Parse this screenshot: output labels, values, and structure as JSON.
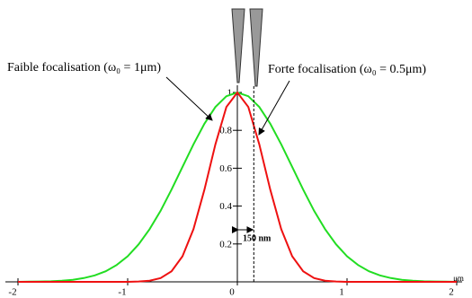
{
  "chart_data": {
    "type": "line",
    "x": [
      -2,
      -1.9,
      -1.8,
      -1.7,
      -1.6,
      -1.5,
      -1.4,
      -1.3,
      -1.2,
      -1.1,
      -1,
      -0.9,
      -0.8,
      -0.7,
      -0.6,
      -0.5,
      -0.4,
      -0.3,
      -0.2,
      -0.1,
      0,
      0.1,
      0.2,
      0.3,
      0.4,
      0.5,
      0.6,
      0.7,
      0.8,
      0.9,
      1,
      1.1,
      1.2,
      1.3,
      1.4,
      1.5,
      1.6,
      1.7,
      1.8,
      1.9,
      2
    ],
    "series": [
      {
        "name": "Faible focalisation (ω₀ = 1μm)",
        "color": "#22dd22",
        "values": [
          0,
          0.001,
          0.002,
          0.003,
          0.006,
          0.011,
          0.02,
          0.034,
          0.056,
          0.089,
          0.135,
          0.198,
          0.278,
          0.375,
          0.487,
          0.607,
          0.726,
          0.835,
          0.923,
          0.98,
          1,
          0.98,
          0.923,
          0.835,
          0.726,
          0.607,
          0.487,
          0.375,
          0.278,
          0.198,
          0.135,
          0.089,
          0.056,
          0.034,
          0.02,
          0.011,
          0.006,
          0.003,
          0.002,
          0.001,
          0
        ]
      },
      {
        "name": "Forte focalisation (ω₀ = 0.5μm)",
        "color": "#ee1111",
        "values": [
          0,
          0,
          0,
          0,
          0,
          0,
          0,
          0,
          0,
          0,
          0,
          0.002,
          0.006,
          0.02,
          0.056,
          0.135,
          0.278,
          0.487,
          0.726,
          0.923,
          1,
          0.923,
          0.726,
          0.487,
          0.278,
          0.135,
          0.056,
          0.02,
          0.006,
          0.002,
          0,
          0,
          0,
          0,
          0,
          0,
          0,
          0,
          0,
          0,
          0
        ]
      }
    ],
    "xlim": [
      -2,
      2
    ],
    "xticks": [
      -2,
      -1,
      0,
      1,
      2
    ],
    "x_unit": "μm",
    "ylim": [
      0,
      1
    ],
    "yticks": [
      0.2,
      0.4,
      0.6,
      0.8,
      1
    ],
    "reference_line_x": 0.15,
    "reference_label": "150 nm"
  }
}
